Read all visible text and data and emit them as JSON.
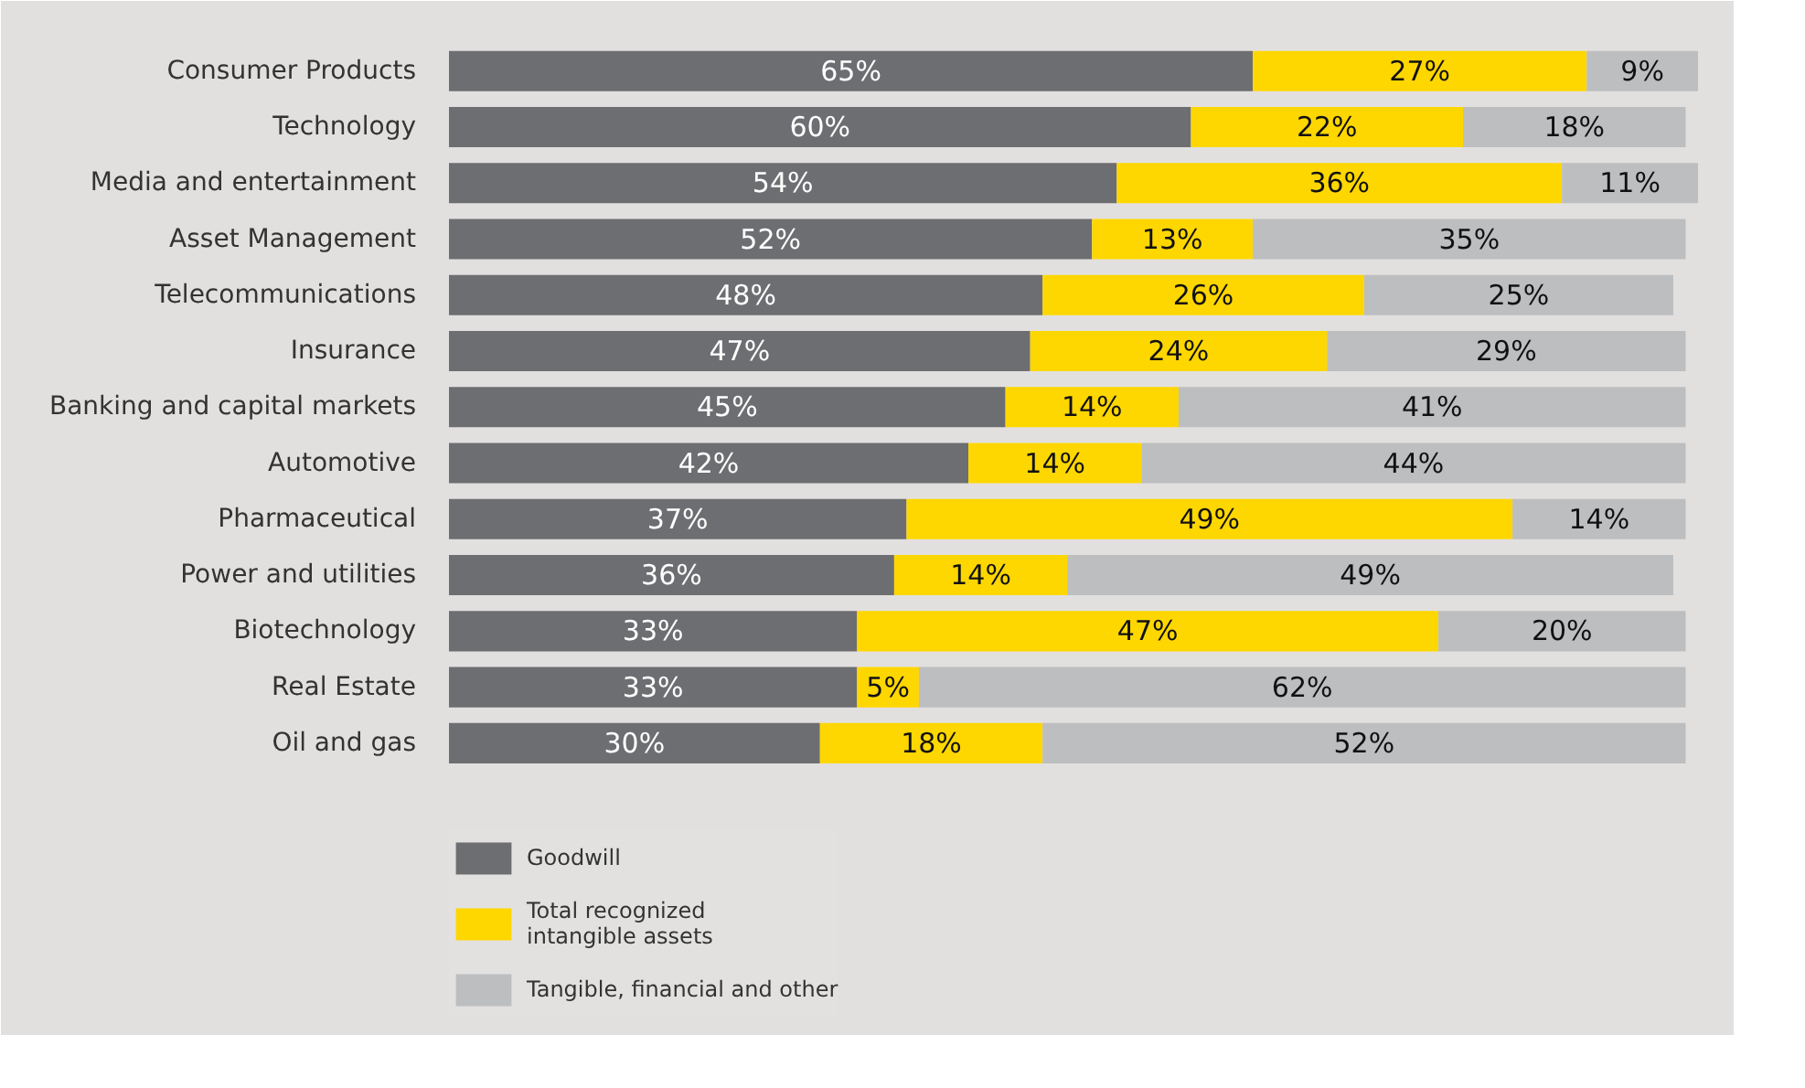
{
  "chart_data": {
    "type": "bar",
    "orientation": "horizontal",
    "stacked": true,
    "data_labels": true,
    "legend": "bottom",
    "grid": false,
    "categories": [
      "Consumer Products",
      "Technology",
      "Media and entertainment",
      "Asset Management",
      "Telecommunications",
      "Insurance",
      "Banking and capital markets",
      "Automotive",
      "Pharmaceutical",
      "Power and utilities",
      "Biotechnology",
      "Real Estate",
      "Oil and gas"
    ],
    "series": [
      {
        "name": "Goodwill",
        "color": "#6d6e71",
        "values": [
          65,
          60,
          54,
          52,
          48,
          47,
          45,
          42,
          37,
          36,
          33,
          33,
          30
        ],
        "value_labels": [
          "65%",
          "60%",
          "54%",
          "52%",
          "48%",
          "47%",
          "45%",
          "42%",
          "37%",
          "36%",
          "33%",
          "33%",
          "30%"
        ]
      },
      {
        "name": "Total recognized\nintangible assets",
        "color": "#ffd700",
        "values": [
          27,
          22,
          36,
          13,
          26,
          24,
          14,
          14,
          49,
          14,
          47,
          5,
          18
        ],
        "value_labels": [
          "27%",
          "22%",
          "36%",
          "13%",
          "26%",
          "24%",
          "14%",
          "14%",
          "49%",
          "14%",
          "47%",
          "5%",
          "18%"
        ]
      },
      {
        "name": "Tangible, financial and other",
        "color": "#bcbec0",
        "values": [
          9,
          18,
          11,
          35,
          25,
          29,
          41,
          44,
          14,
          49,
          20,
          62,
          52
        ],
        "value_labels": [
          "9%",
          "18%",
          "11%",
          "35%",
          "25%",
          "29%",
          "41%",
          "44%",
          "14%",
          "49%",
          "20%",
          "62%",
          "52%"
        ]
      }
    ]
  }
}
